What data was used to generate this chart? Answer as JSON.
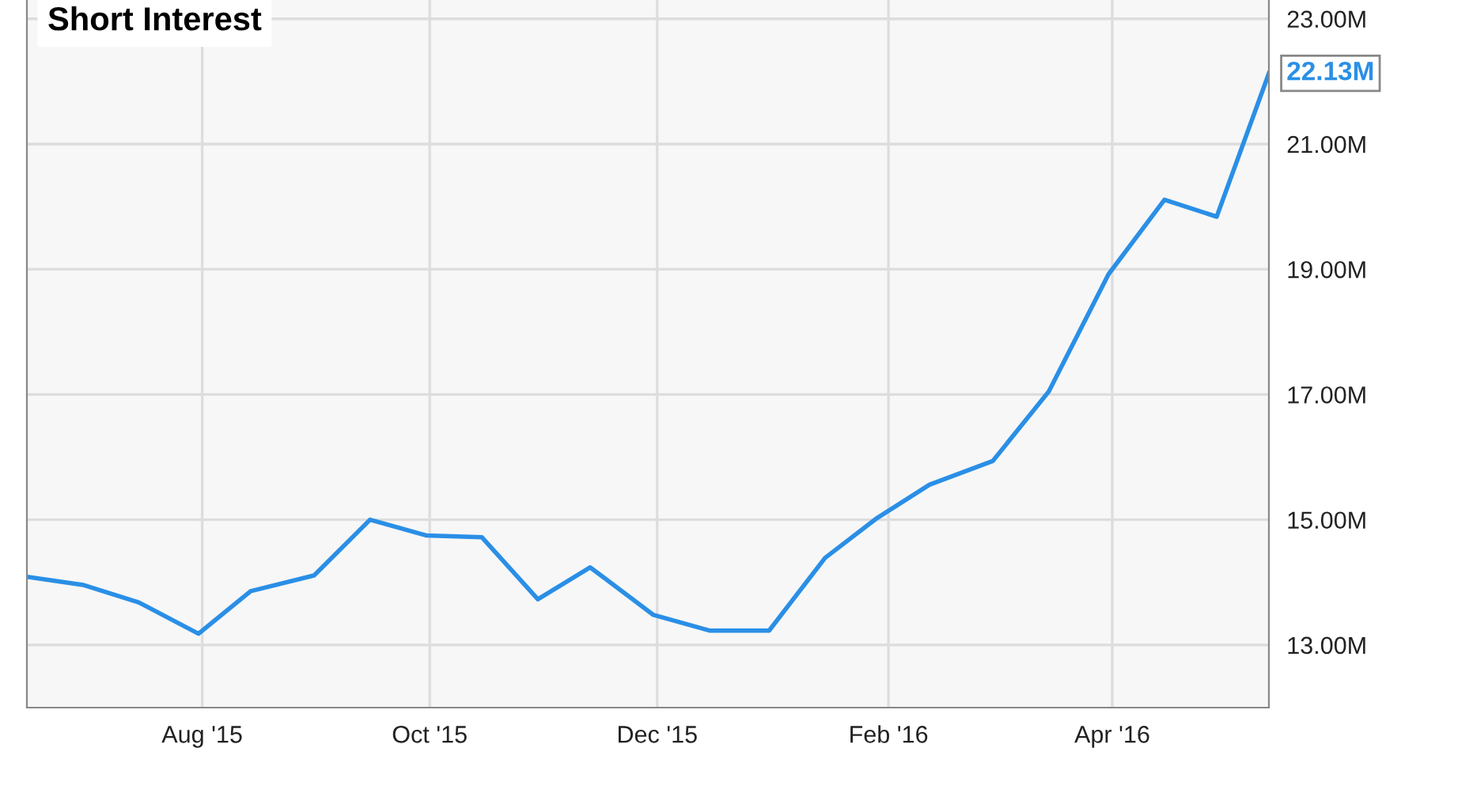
{
  "chart_data": {
    "type": "line",
    "title": "Short Interest",
    "x": [
      "2015-06-15",
      "2015-06-30",
      "2015-07-15",
      "2015-07-31",
      "2015-08-14",
      "2015-08-31",
      "2015-09-15",
      "2015-09-30",
      "2015-10-15",
      "2015-10-30",
      "2015-11-13",
      "2015-11-30",
      "2015-12-15",
      "2015-12-31",
      "2016-01-15",
      "2016-01-29",
      "2016-02-12",
      "2016-02-29",
      "2016-03-15",
      "2016-03-31",
      "2016-04-15",
      "2016-04-29",
      "2016-05-13"
    ],
    "series": [
      {
        "color": "#2a8fe6",
        "values": [
          14.09,
          13.96,
          13.68,
          13.18,
          13.86,
          14.11,
          15.0,
          14.75,
          14.72,
          13.73,
          14.24,
          13.48,
          13.23,
          13.23,
          14.39,
          15.03,
          15.56,
          15.94,
          17.05,
          18.92,
          20.11,
          19.84,
          22.13
        ],
        "value_labels": [
          null,
          null,
          null,
          null,
          null,
          null,
          null,
          null,
          null,
          null,
          null,
          null,
          null,
          null,
          null,
          null,
          null,
          null,
          null,
          null,
          null,
          null,
          "22.13M"
        ]
      }
    ],
    "xlim": [
      "2015-06-15",
      "2016-05-13"
    ],
    "xticks": [
      {
        "value": "2015-08-01",
        "label": "Aug '15"
      },
      {
        "value": "2015-10-01",
        "label": "Oct '15"
      },
      {
        "value": "2015-12-01",
        "label": "Dec '15"
      },
      {
        "value": "2016-02-01",
        "label": "Feb '16"
      },
      {
        "value": "2016-04-01",
        "label": "Apr '16"
      }
    ],
    "ylim": [
      12.0,
      23.3
    ],
    "yticks": [
      {
        "value": 13,
        "label": "13.00M"
      },
      {
        "value": 15,
        "label": "15.00M"
      },
      {
        "value": 17,
        "label": "17.00M"
      },
      {
        "value": 19,
        "label": "19.00M"
      },
      {
        "value": 21,
        "label": "21.00M"
      },
      {
        "value": 23,
        "label": "23.00M"
      }
    ],
    "grid": true,
    "marker": "none",
    "line_style": "solid"
  }
}
